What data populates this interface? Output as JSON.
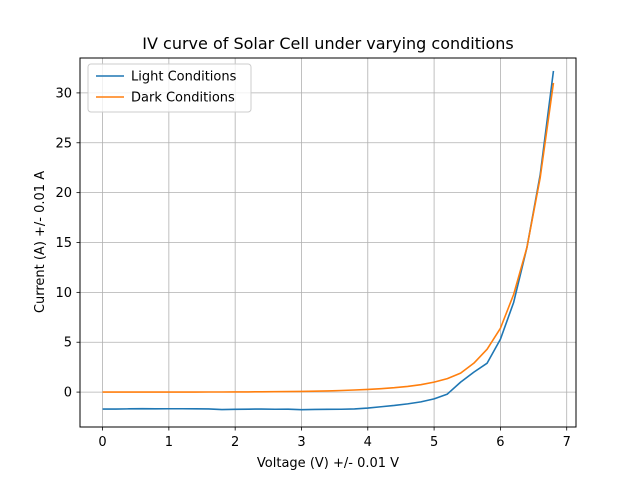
{
  "chart_data": {
    "type": "line",
    "title": "IV curve of Solar Cell under varying conditions",
    "xlabel": "Voltage (V) +/- 0.01 V",
    "ylabel": "Current (A) +/- 0.01 A",
    "xlim": [
      -0.34,
      7.14
    ],
    "ylim": [
      -3.5,
      33.5
    ],
    "xticks": [
      0,
      1,
      2,
      3,
      4,
      5,
      6,
      7
    ],
    "yticks": [
      0,
      5,
      10,
      15,
      20,
      25,
      30
    ],
    "grid": true,
    "legend_position": "top-left",
    "series": [
      {
        "name": "Light Conditions",
        "color": "#1f77b4",
        "x": [
          0,
          0.2,
          0.4,
          0.6,
          0.8,
          1.0,
          1.2,
          1.4,
          1.6,
          1.8,
          2.0,
          2.2,
          2.4,
          2.6,
          2.8,
          3.0,
          3.2,
          3.4,
          3.6,
          3.8,
          4.0,
          4.2,
          4.4,
          4.6,
          4.8,
          5.0,
          5.2,
          5.4,
          5.6,
          5.8,
          6.0,
          6.2,
          6.4,
          6.6,
          6.8
        ],
        "y": [
          -1.7,
          -1.7,
          -1.68,
          -1.66,
          -1.68,
          -1.67,
          -1.67,
          -1.68,
          -1.69,
          -1.75,
          -1.73,
          -1.71,
          -1.7,
          -1.72,
          -1.71,
          -1.76,
          -1.74,
          -1.73,
          -1.72,
          -1.69,
          -1.6,
          -1.47,
          -1.34,
          -1.18,
          -0.98,
          -0.68,
          -0.2,
          1.0,
          2.0,
          2.9,
          5.3,
          9.0,
          14.5,
          21.8,
          32.2
        ]
      },
      {
        "name": "Dark Conditions",
        "color": "#ff7f0e",
        "x": [
          0,
          0.2,
          0.4,
          0.6,
          0.8,
          1.0,
          1.2,
          1.4,
          1.6,
          1.8,
          2.0,
          2.2,
          2.4,
          2.6,
          2.8,
          3.0,
          3.2,
          3.4,
          3.6,
          3.8,
          4.0,
          4.2,
          4.4,
          4.6,
          4.8,
          5.0,
          5.2,
          5.4,
          5.6,
          5.8,
          6.0,
          6.2,
          6.4,
          6.6,
          6.8
        ],
        "y": [
          0,
          0,
          0,
          0,
          0,
          0,
          0,
          0,
          0.01,
          0.01,
          0.02,
          0.02,
          0.03,
          0.04,
          0.05,
          0.07,
          0.09,
          0.12,
          0.16,
          0.21,
          0.27,
          0.34,
          0.44,
          0.57,
          0.74,
          1.0,
          1.35,
          1.9,
          2.9,
          4.3,
          6.4,
          9.8,
          14.5,
          21.5,
          31.0
        ]
      }
    ]
  }
}
